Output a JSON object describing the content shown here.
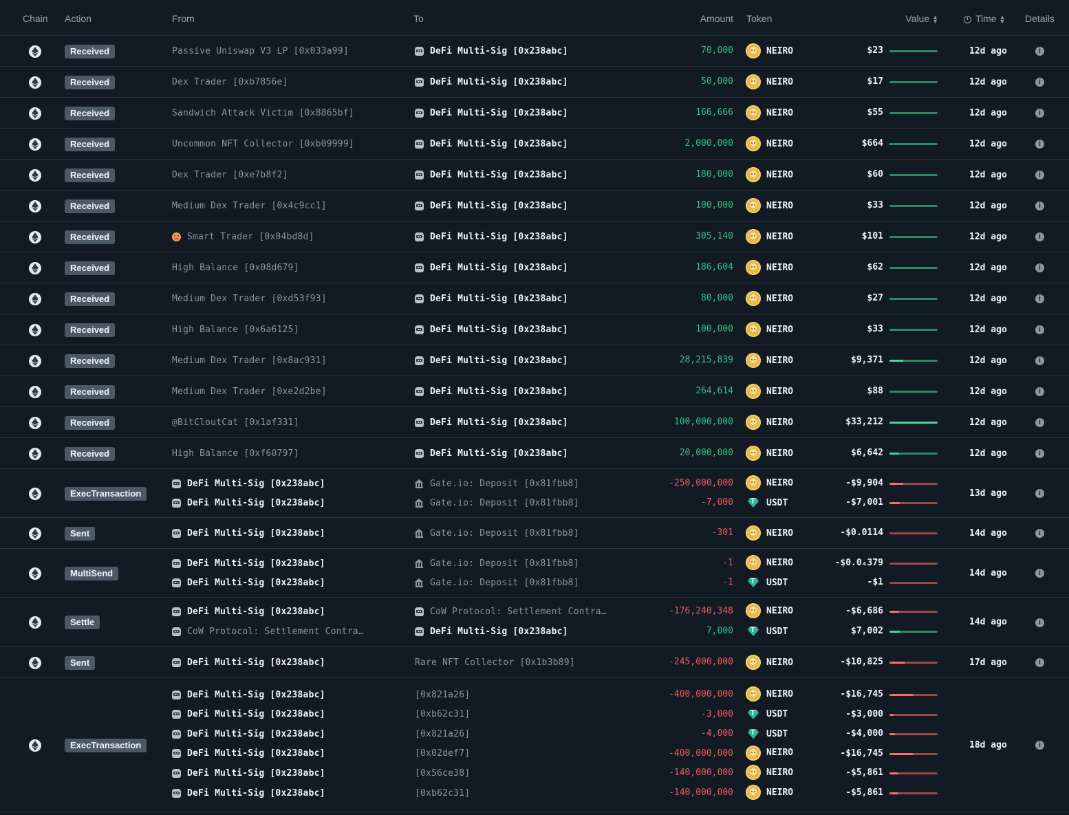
{
  "header": {
    "chain": "Chain",
    "action": "Action",
    "from": "From",
    "to": "To",
    "amount": "Amount",
    "token": "Token",
    "value": "Value",
    "time": "Time",
    "details": "Details"
  },
  "colors": {
    "positive": "#35c28a",
    "negative": "#ef5d5d",
    "badge": "#4b5866",
    "background": "#121a23"
  },
  "rows": [
    {
      "action": "Received",
      "time": "12d ago",
      "transfers": [
        {
          "from": "Passive Uniswap V3 LP [0x033a99]",
          "from_icon": "",
          "from_bright": false,
          "to": "DeFi Multi-Sig [0x238abc]",
          "to_icon": "safe",
          "to_bright": true,
          "amount": "70,000",
          "sign": "pos",
          "token": "NEIRO",
          "value": "$23",
          "bar": 0.0
        }
      ]
    },
    {
      "action": "Received",
      "time": "12d ago",
      "transfers": [
        {
          "from": "Dex Trader [0xb7856e]",
          "from_icon": "",
          "from_bright": false,
          "to": "DeFi Multi-Sig [0x238abc]",
          "to_icon": "safe",
          "to_bright": true,
          "amount": "50,000",
          "sign": "pos",
          "token": "NEIRO",
          "value": "$17",
          "bar": 0.0
        }
      ]
    },
    {
      "action": "Received",
      "time": "12d ago",
      "transfers": [
        {
          "from": "Sandwich Attack Victim [0x8865bf]",
          "from_icon": "",
          "from_bright": false,
          "to": "DeFi Multi-Sig [0x238abc]",
          "to_icon": "safe",
          "to_bright": true,
          "amount": "166,666",
          "sign": "pos",
          "token": "NEIRO",
          "value": "$55",
          "bar": 0.0
        }
      ]
    },
    {
      "action": "Received",
      "time": "12d ago",
      "transfers": [
        {
          "from": "Uncommon NFT Collector [0xb09999]",
          "from_icon": "",
          "from_bright": false,
          "to": "DeFi Multi-Sig [0x238abc]",
          "to_icon": "safe",
          "to_bright": true,
          "amount": "2,000,000",
          "sign": "pos",
          "token": "NEIRO",
          "value": "$664",
          "bar": 0.02
        }
      ]
    },
    {
      "action": "Received",
      "time": "12d ago",
      "transfers": [
        {
          "from": "Dex Trader [0xe7b8f2]",
          "from_icon": "",
          "from_bright": false,
          "to": "DeFi Multi-Sig [0x238abc]",
          "to_icon": "safe",
          "to_bright": true,
          "amount": "180,000",
          "sign": "pos",
          "token": "NEIRO",
          "value": "$60",
          "bar": 0.0
        }
      ]
    },
    {
      "action": "Received",
      "time": "12d ago",
      "transfers": [
        {
          "from": "Medium Dex Trader [0x4c9cc1]",
          "from_icon": "",
          "from_bright": false,
          "to": "DeFi Multi-Sig [0x238abc]",
          "to_icon": "safe",
          "to_bright": true,
          "amount": "100,000",
          "sign": "pos",
          "token": "NEIRO",
          "value": "$33",
          "bar": 0.0
        }
      ]
    },
    {
      "action": "Received",
      "time": "12d ago",
      "transfers": [
        {
          "from": "Smart Trader [0x04bd8d]",
          "from_icon": "face",
          "from_bright": false,
          "to": "DeFi Multi-Sig [0x238abc]",
          "to_icon": "safe",
          "to_bright": true,
          "amount": "305,140",
          "sign": "pos",
          "token": "NEIRO",
          "value": "$101",
          "bar": 0.0
        }
      ]
    },
    {
      "action": "Received",
      "time": "12d ago",
      "transfers": [
        {
          "from": "High Balance [0x08d679]",
          "from_icon": "",
          "from_bright": false,
          "to": "DeFi Multi-Sig [0x238abc]",
          "to_icon": "safe",
          "to_bright": true,
          "amount": "186,604",
          "sign": "pos",
          "token": "NEIRO",
          "value": "$62",
          "bar": 0.0
        }
      ]
    },
    {
      "action": "Received",
      "time": "12d ago",
      "transfers": [
        {
          "from": "Medium Dex Trader [0xd53f93]",
          "from_icon": "",
          "from_bright": false,
          "to": "DeFi Multi-Sig [0x238abc]",
          "to_icon": "safe",
          "to_bright": true,
          "amount": "80,000",
          "sign": "pos",
          "token": "NEIRO",
          "value": "$27",
          "bar": 0.0
        }
      ]
    },
    {
      "action": "Received",
      "time": "12d ago",
      "transfers": [
        {
          "from": "High Balance [0x6a6125]",
          "from_icon": "",
          "from_bright": false,
          "to": "DeFi Multi-Sig [0x238abc]",
          "to_icon": "safe",
          "to_bright": true,
          "amount": "100,000",
          "sign": "pos",
          "token": "NEIRO",
          "value": "$33",
          "bar": 0.0
        }
      ]
    },
    {
      "action": "Received",
      "time": "12d ago",
      "transfers": [
        {
          "from": "Medium Dex Trader [0x8ac931]",
          "from_icon": "",
          "from_bright": false,
          "to": "DeFi Multi-Sig [0x238abc]",
          "to_icon": "safe",
          "to_bright": true,
          "amount": "28,215,839",
          "sign": "pos",
          "token": "NEIRO",
          "value": "$9,371",
          "bar": 0.28
        }
      ]
    },
    {
      "action": "Received",
      "time": "12d ago",
      "transfers": [
        {
          "from": "Medium Dex Trader [0xe2d2be]",
          "from_icon": "",
          "from_bright": false,
          "to": "DeFi Multi-Sig [0x238abc]",
          "to_icon": "safe",
          "to_bright": true,
          "amount": "264,614",
          "sign": "pos",
          "token": "NEIRO",
          "value": "$88",
          "bar": 0.0
        }
      ]
    },
    {
      "action": "Received",
      "time": "12d ago",
      "transfers": [
        {
          "from": "@BitCloutCat [0x1af331]",
          "from_icon": "",
          "from_bright": false,
          "to": "DeFi Multi-Sig [0x238abc]",
          "to_icon": "safe",
          "to_bright": true,
          "amount": "100,000,000",
          "sign": "pos",
          "token": "NEIRO",
          "value": "$33,212",
          "bar": 1.0
        }
      ]
    },
    {
      "action": "Received",
      "time": "12d ago",
      "transfers": [
        {
          "from": "High Balance [0xf60797]",
          "from_icon": "",
          "from_bright": false,
          "to": "DeFi Multi-Sig [0x238abc]",
          "to_icon": "safe",
          "to_bright": true,
          "amount": "20,000,000",
          "sign": "pos",
          "token": "NEIRO",
          "value": "$6,642",
          "bar": 0.2
        }
      ]
    },
    {
      "action": "ExecTransaction",
      "time": "13d ago",
      "transfers": [
        {
          "from": "DeFi Multi-Sig [0x238abc]",
          "from_icon": "safe",
          "from_bright": true,
          "to": "Gate.io: Deposit [0x81fbb8]",
          "to_icon": "bank",
          "to_bright": false,
          "amount": "-250,000,000",
          "sign": "neg",
          "token": "NEIRO",
          "value": "-$9,904",
          "bar": 0.29
        },
        {
          "from": "DeFi Multi-Sig [0x238abc]",
          "from_icon": "safe",
          "from_bright": true,
          "to": "Gate.io: Deposit [0x81fbb8]",
          "to_icon": "bank",
          "to_bright": false,
          "amount": "-7,000",
          "sign": "neg",
          "token": "USDT",
          "value": "-$7,001",
          "bar": 0.21
        }
      ]
    },
    {
      "action": "Sent",
      "time": "14d ago",
      "transfers": [
        {
          "from": "DeFi Multi-Sig [0x238abc]",
          "from_icon": "safe",
          "from_bright": true,
          "to": "Gate.io: Deposit [0x81fbb8]",
          "to_icon": "bank",
          "to_bright": false,
          "amount": "-301",
          "sign": "neg",
          "token": "NEIRO",
          "value": "-$0.0114",
          "bar": 0.0
        }
      ]
    },
    {
      "action": "MultiSend",
      "time": "14d ago",
      "transfers": [
        {
          "from": "DeFi Multi-Sig [0x238abc]",
          "from_icon": "safe",
          "from_bright": true,
          "to": "Gate.io: Deposit [0x81fbb8]",
          "to_icon": "bank",
          "to_bright": false,
          "amount": "-1",
          "sign": "neg",
          "token": "NEIRO",
          "value": "-$0.0₄379",
          "bar": 0.0
        },
        {
          "from": "DeFi Multi-Sig [0x238abc]",
          "from_icon": "safe",
          "from_bright": true,
          "to": "Gate.io: Deposit [0x81fbb8]",
          "to_icon": "bank",
          "to_bright": false,
          "amount": "-1",
          "sign": "neg",
          "token": "USDT",
          "value": "-$1",
          "bar": 0.0
        }
      ]
    },
    {
      "action": "Settle",
      "time": "14d ago",
      "transfers": [
        {
          "from": "DeFi Multi-Sig [0x238abc]",
          "from_icon": "safe",
          "from_bright": true,
          "to": "CoW Protocol: Settlement Contra…",
          "to_icon": "safe",
          "to_bright": false,
          "amount": "-176,240,348",
          "sign": "neg",
          "token": "NEIRO",
          "value": "-$6,686",
          "bar": 0.2
        },
        {
          "from": "CoW Protocol: Settlement Contra…",
          "from_icon": "safe",
          "from_bright": false,
          "to": "DeFi Multi-Sig [0x238abc]",
          "to_icon": "safe",
          "to_bright": true,
          "amount": "7,000",
          "sign": "pos",
          "token": "USDT",
          "value": "$7,002",
          "bar": 0.21
        }
      ]
    },
    {
      "action": "Sent",
      "time": "17d ago",
      "transfers": [
        {
          "from": "DeFi Multi-Sig [0x238abc]",
          "from_icon": "safe",
          "from_bright": true,
          "to": "Rare NFT Collector [0x1b3b89]",
          "to_icon": "",
          "to_bright": false,
          "amount": "-245,000,000",
          "sign": "neg",
          "token": "NEIRO",
          "value": "-$10,825",
          "bar": 0.33
        }
      ]
    },
    {
      "action": "ExecTransaction",
      "time": "18d ago",
      "transfers": [
        {
          "from": "DeFi Multi-Sig [0x238abc]",
          "from_icon": "safe",
          "from_bright": true,
          "to": "[0x821a26]",
          "to_icon": "",
          "to_bright": false,
          "amount": "-400,000,000",
          "sign": "neg",
          "token": "NEIRO",
          "value": "-$16,745",
          "bar": 0.5
        },
        {
          "from": "DeFi Multi-Sig [0x238abc]",
          "from_icon": "safe",
          "from_bright": true,
          "to": "[0xb62c31]",
          "to_icon": "",
          "to_bright": false,
          "amount": "-3,000",
          "sign": "neg",
          "token": "USDT",
          "value": "-$3,000",
          "bar": 0.09
        },
        {
          "from": "DeFi Multi-Sig [0x238abc]",
          "from_icon": "safe",
          "from_bright": true,
          "to": "[0x821a26]",
          "to_icon": "",
          "to_bright": false,
          "amount": "-4,000",
          "sign": "neg",
          "token": "USDT",
          "value": "-$4,000",
          "bar": 0.12
        },
        {
          "from": "DeFi Multi-Sig [0x238abc]",
          "from_icon": "safe",
          "from_bright": true,
          "to": "[0x02def7]",
          "to_icon": "",
          "to_bright": false,
          "amount": "-400,000,000",
          "sign": "neg",
          "token": "NEIRO",
          "value": "-$16,745",
          "bar": 0.5
        },
        {
          "from": "DeFi Multi-Sig [0x238abc]",
          "from_icon": "safe",
          "from_bright": true,
          "to": "[0x56ce38]",
          "to_icon": "",
          "to_bright": false,
          "amount": "-140,000,000",
          "sign": "neg",
          "token": "NEIRO",
          "value": "-$5,861",
          "bar": 0.18
        },
        {
          "from": "DeFi Multi-Sig [0x238abc]",
          "from_icon": "safe",
          "from_bright": true,
          "to": "[0xb62c31]",
          "to_icon": "",
          "to_bright": false,
          "amount": "-140,000,000",
          "sign": "neg",
          "token": "NEIRO",
          "value": "-$5,861",
          "bar": 0.18
        }
      ]
    }
  ]
}
